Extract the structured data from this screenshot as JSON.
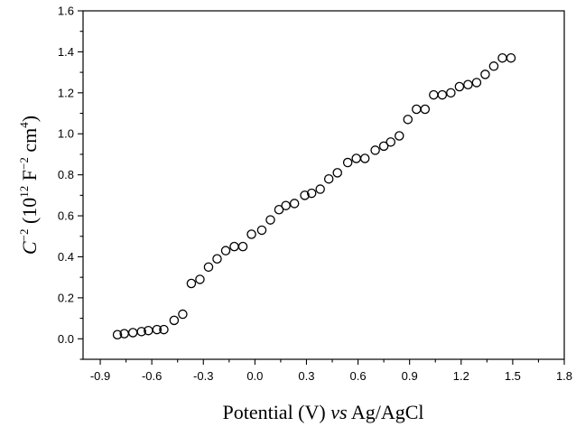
{
  "chart_data": {
    "type": "scatter",
    "xlabel_parts": [
      "Potential (V) ",
      "vs",
      " Ag/AgCl"
    ],
    "ylabel_parts": [
      "C",
      "−2",
      " (10",
      "12",
      " F",
      "−2",
      " cm",
      "4",
      ")"
    ],
    "xlim": [
      -1.0,
      1.8
    ],
    "ylim": [
      -0.1,
      1.6
    ],
    "x_ticks": [
      -0.9,
      -0.6,
      -0.3,
      0.0,
      0.3,
      0.6,
      0.9,
      1.2,
      1.5,
      1.8
    ],
    "x_tick_labels": [
      "-0.9",
      "-0.6",
      "-0.3",
      "0.0",
      "0.3",
      "0.6",
      "0.9",
      "1.2",
      "1.5",
      "1.8"
    ],
    "y_ticks": [
      0.0,
      0.2,
      0.4,
      0.6,
      0.8,
      1.0,
      1.2,
      1.4,
      1.6
    ],
    "y_tick_labels": [
      "0.0",
      "0.2",
      "0.4",
      "0.6",
      "0.8",
      "1.0",
      "1.2",
      "1.4",
      "1.6"
    ],
    "grid": false,
    "marker": "open-circle",
    "series": [
      {
        "x": [
          -0.8,
          -0.76,
          -0.71,
          -0.66,
          -0.62,
          -0.57,
          -0.53,
          -0.47,
          -0.42,
          -0.37,
          -0.32,
          -0.27,
          -0.22,
          -0.17,
          -0.12,
          -0.07,
          -0.02,
          0.04,
          0.09,
          0.14,
          0.18,
          0.23,
          0.29,
          0.33,
          0.38,
          0.43,
          0.48,
          0.54,
          0.59,
          0.64,
          0.7,
          0.75,
          0.79,
          0.84,
          0.89,
          0.94,
          0.99,
          1.04,
          1.09,
          1.14,
          1.19,
          1.24,
          1.29,
          1.34,
          1.39,
          1.44,
          1.49
        ],
        "y": [
          0.02,
          0.025,
          0.03,
          0.035,
          0.04,
          0.045,
          0.045,
          0.09,
          0.12,
          0.27,
          0.29,
          0.35,
          0.39,
          0.43,
          0.45,
          0.45,
          0.51,
          0.53,
          0.58,
          0.63,
          0.65,
          0.66,
          0.7,
          0.71,
          0.73,
          0.78,
          0.81,
          0.86,
          0.88,
          0.88,
          0.92,
          0.94,
          0.96,
          0.99,
          1.07,
          1.12,
          1.12,
          1.19,
          1.19,
          1.2,
          1.23,
          1.24,
          1.25,
          1.29,
          1.33,
          1.37,
          1.37
        ]
      }
    ]
  }
}
